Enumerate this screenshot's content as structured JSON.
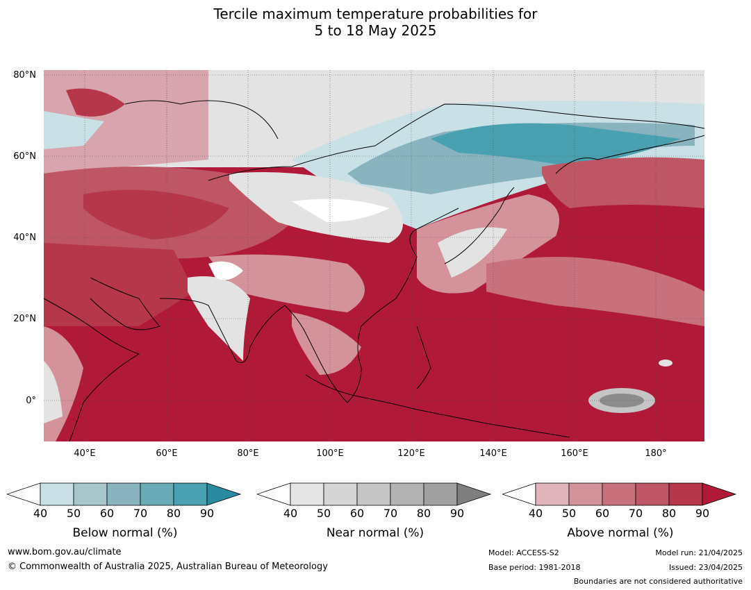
{
  "title_line1": "Tercile maximum temperature probabilities for",
  "title_line2": "5 to 18 May 2025",
  "map": {
    "lat_labels": [
      "80°N",
      "60°N",
      "40°N",
      "20°N",
      "0°"
    ],
    "lon_labels": [
      "40°E",
      "60°E",
      "80°E",
      "100°E",
      "120°E",
      "140°E",
      "160°E",
      "180°"
    ]
  },
  "colorbars": [
    {
      "label": "Below normal (%)",
      "ticks": [
        "40",
        "50",
        "60",
        "70",
        "80",
        "90"
      ],
      "colors": [
        "#c8e0e6",
        "#a7c6cc",
        "#89b3bf",
        "#6aaab7",
        "#48a0b0",
        "#2a8aa0"
      ]
    },
    {
      "label": "Near normal (%)",
      "ticks": [
        "40",
        "50",
        "60",
        "70",
        "80",
        "90"
      ],
      "colors": [
        "#e5e5e5",
        "#d5d5d5",
        "#c5c5c5",
        "#b3b3b3",
        "#a0a0a0",
        "#7f7f7f"
      ]
    },
    {
      "label": "Above normal (%)",
      "ticks": [
        "40",
        "50",
        "60",
        "70",
        "80",
        "90"
      ],
      "colors": [
        "#e0b4ba",
        "#d4939b",
        "#c8707c",
        "#bf5665",
        "#b6364a",
        "#b01a38"
      ]
    }
  ],
  "footer": {
    "url": "www.bom.gov.au/climate",
    "copyright": "© Commonwealth of Australia 2025, Australian Bureau of Meteorology",
    "model": "Model: ACCESS-S2",
    "base_period": "Base period: 1981-2018",
    "model_run": "Model run: 21/04/2025",
    "issued": "Issued: 23/04/2025",
    "boundaries": "Boundaries are not considered authoritative"
  }
}
